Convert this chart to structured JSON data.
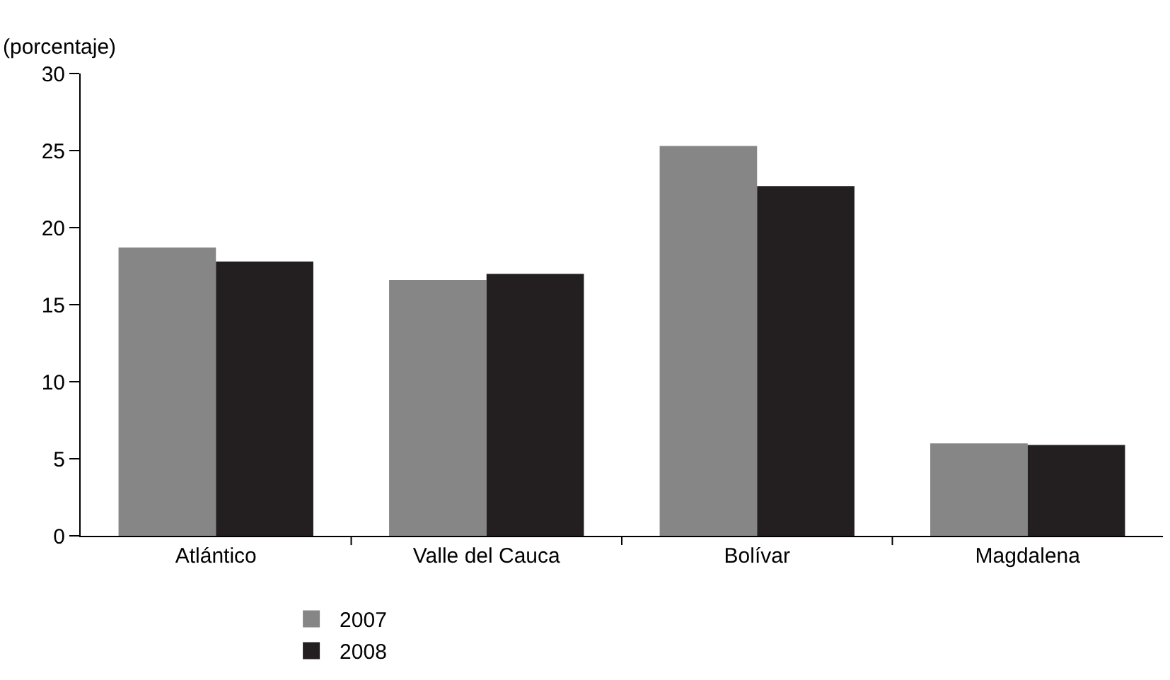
{
  "chart_data": {
    "type": "bar",
    "ylabel": "(porcentaje)",
    "categories": [
      "Atlántico",
      "Valle del Cauca",
      "Bolívar",
      "Magdalena"
    ],
    "series": [
      {
        "name": "2007",
        "color": "#868686",
        "values": [
          18.7,
          16.6,
          25.3,
          6.0
        ]
      },
      {
        "name": "2008",
        "color": "#231f20",
        "values": [
          17.8,
          17.0,
          22.7,
          5.9
        ]
      }
    ],
    "ylim": [
      0,
      30
    ],
    "yticks": [
      0,
      5,
      10,
      15,
      20,
      25,
      30
    ],
    "grid": false,
    "legend": "bottom"
  }
}
